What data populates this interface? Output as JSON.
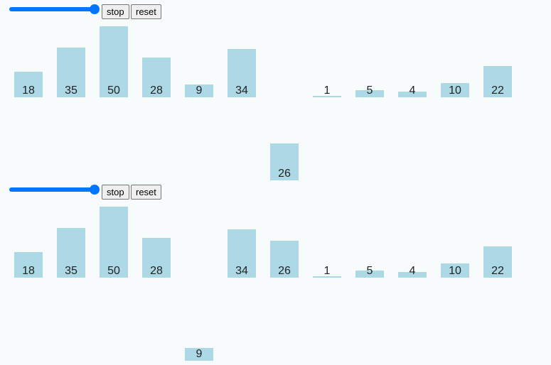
{
  "panels": [
    {
      "buttons": [
        "stop",
        "reset"
      ],
      "values": [
        18,
        35,
        50,
        28,
        9,
        34,
        26,
        1,
        5,
        4,
        10,
        22
      ],
      "active_index": 6,
      "bar_color": "#add8e6"
    },
    {
      "buttons": [
        "stop",
        "reset"
      ],
      "values": [
        18,
        35,
        50,
        28,
        9,
        34,
        26,
        1,
        5,
        4,
        10,
        22
      ],
      "active_index": 4,
      "bar_color": "#add8e6"
    }
  ]
}
